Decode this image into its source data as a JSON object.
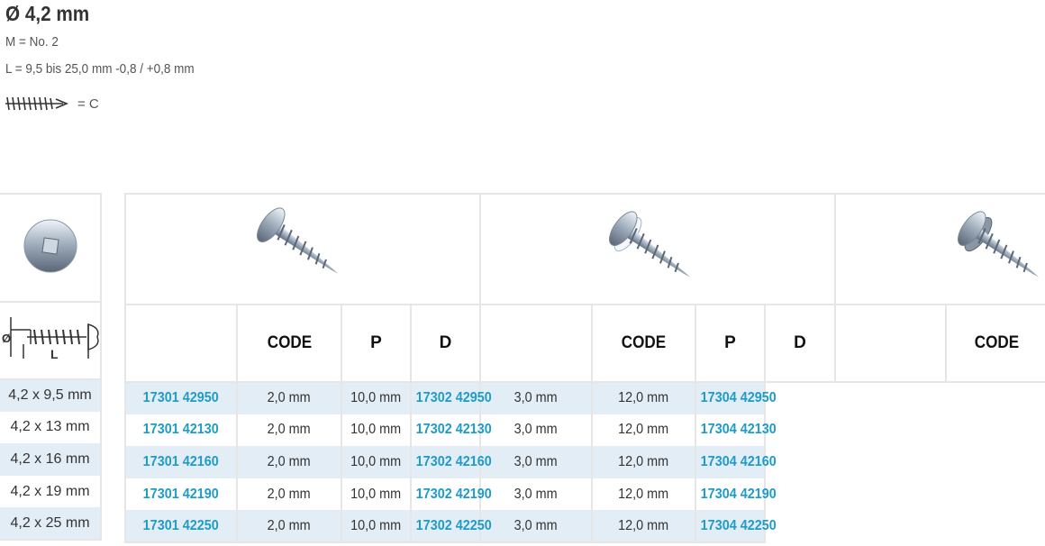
{
  "header": {
    "title": "Ø 4,2 mm",
    "m": "M = No. 2",
    "l": "L = 9,5 bis 25,0 mm -0,8 / +0,8 mm",
    "thread_label": "= C"
  },
  "left": {
    "sizes": [
      "4,2 x 9,5 mm",
      "4,2 x 13 mm",
      "4,2 x 16 mm",
      "4,2 x 19 mm",
      "4,2 x 25 mm"
    ],
    "diagram_labels": {
      "diameter": "Ø",
      "length": "L"
    }
  },
  "groups": [
    {
      "code_header": "CODE",
      "p_header": "P",
      "d_header": "D",
      "rows": [
        {
          "code": "17301 42950",
          "p": "2,0 mm",
          "d": "10,0 mm"
        },
        {
          "code": "17301 42130",
          "p": "2,0 mm",
          "d": "10,0 mm"
        },
        {
          "code": "17301 42160",
          "p": "2,0 mm",
          "d": "10,0 mm"
        },
        {
          "code": "17301 42190",
          "p": "2,0 mm",
          "d": "10,0 mm"
        },
        {
          "code": "17301 42250",
          "p": "2,0 mm",
          "d": "10,0 mm"
        }
      ]
    },
    {
      "code_header": "CODE",
      "p_header": "P",
      "d_header": "D",
      "rows": [
        {
          "code": "17302 42950",
          "p": "3,0 mm",
          "d": "12,0 mm"
        },
        {
          "code": "17302 42130",
          "p": "3,0 mm",
          "d": "12,0 mm"
        },
        {
          "code": "17302 42160",
          "p": "3,0 mm",
          "d": "12,0 mm"
        },
        {
          "code": "17302 42190",
          "p": "3,0 mm",
          "d": "12,0 mm"
        },
        {
          "code": "17302 42250",
          "p": "3,0 mm",
          "d": "12,0 mm"
        }
      ]
    },
    {
      "code_header": "CODE",
      "rows": [
        {
          "code": "17304 42950"
        },
        {
          "code": "17304 42130"
        },
        {
          "code": "17304 42160"
        },
        {
          "code": "17304 42190"
        },
        {
          "code": "17304 42250"
        }
      ]
    }
  ],
  "colors": {
    "code": "#1e9bc8",
    "row_alt": "#e3edf5",
    "border": "#e6e6e6"
  }
}
